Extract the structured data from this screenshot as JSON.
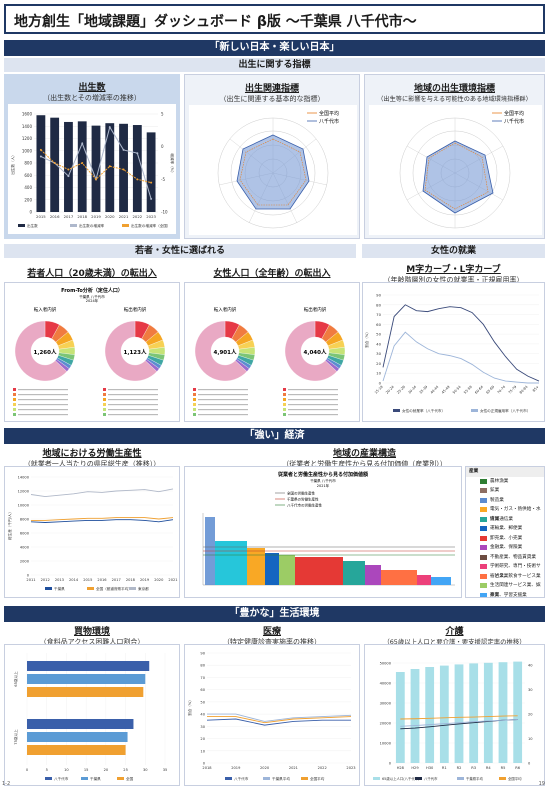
{
  "header": {
    "title": "地方創生「地域課題」ダッシュボード β版 〜千葉県 八千代市〜"
  },
  "section1": {
    "banner": "「新しい日本・楽しい日本」",
    "subbanner": "出生に関する指標",
    "births": {
      "title": "出生数",
      "subtitle": "（出生数とその増減率の推移）",
      "legend": [
        "出生数",
        "出生数の増減率",
        "出生数の増減率（全国）"
      ]
    },
    "birth_related": {
      "title": "出生関連指標",
      "subtitle": "（出生に関連する基本的な指標）",
      "legend": [
        "全国平均",
        "八千代市"
      ]
    },
    "birth_env": {
      "title": "地域の出生環境指標",
      "subtitle": "（出生等に影響を与える可能性のある地域環境指標群）",
      "legend": [
        "全国平均",
        "八千代市"
      ]
    }
  },
  "section2": {
    "banner_left": "若者・女性に選ばれる",
    "banner_right": "女性の就業",
    "youth": {
      "title": "若者人口（20歳未満）の転出入",
      "chart_title": "From-To分析（定住人口）",
      "chart_sub1": "千葉県 八千代市",
      "chart_sub2": "2024年",
      "left_label": "転入者内訳",
      "right_label": "転出者内訳",
      "left_total": "1,260人",
      "right_total": "1,123人"
    },
    "women": {
      "title": "女性人口（全年齢）の転出入",
      "left_label": "転入者内訳",
      "right_label": "転出者内訳",
      "left_total": "4,901人",
      "right_total": "4,040人"
    },
    "mcurve": {
      "title": "M字カーブ・L字カーブ",
      "subtitle": "（年齢階層別の女性の就業率・正規雇用率）",
      "legend": [
        "女性の就業率（八千代市）",
        "女性の正規雇用率（八千代市）"
      ],
      "ylabel": "割合（%）"
    }
  },
  "section3": {
    "banner": "「強い」経済",
    "productivity": {
      "title": "地域における労働生産性",
      "subtitle": "（就業者一人当たりの県民総生産（推移））",
      "legend": [
        "千葉県",
        "全国（都道府県平均）",
        "東京都"
      ],
      "ylabel": "総生産（千円/人）"
    },
    "industry": {
      "title": "地域の産業構造",
      "subtitle": "（従業者と労働生産性から見る付加価値（産業別））",
      "chart_title": "従業者と労働生産性から見る付加価値額",
      "chart_sub1": "千葉県 八千代市",
      "chart_sub2": "2021年",
      "legend": [
        "全国の労働生産性",
        "千葉県の労働生産性",
        "八千代市の労働生産性"
      ],
      "list_header": "産業",
      "list": [
        {
          "label": "農林漁業",
          "color": "#2e7d32"
        },
        {
          "label": "鉱業",
          "color": "#8d6e63"
        },
        {
          "label": "製造業",
          "color": "#5b8bd0"
        },
        {
          "label": "電気・ガス・熱供給・水道業",
          "color": "#f9a825"
        },
        {
          "label": "情報通信業",
          "color": "#26a69a"
        },
        {
          "label": "運輸業、郵便業",
          "color": "#1565c0"
        },
        {
          "label": "卸売業、小売業",
          "color": "#e53935"
        },
        {
          "label": "金融業、保険業",
          "color": "#ab47bc"
        },
        {
          "label": "不動産業、物品賃貸業",
          "color": "#6d4c41"
        },
        {
          "label": "学術研究、専門・技術サービス業",
          "color": "#ec407a"
        },
        {
          "label": "宿泊業、飲食サービス業",
          "color": "#ff7043"
        },
        {
          "label": "生活関連サービス業、娯楽業",
          "color": "#9ccc65"
        },
        {
          "label": "教育、学習支援業",
          "color": "#42a5f5"
        },
        {
          "label": "医療、福祉",
          "color": "#26c6da"
        },
        {
          "label": "複合サービス事業",
          "color": "#7e57c2"
        },
        {
          "label": "サービス業（他に分類されないもの）",
          "color": "#fbc02d"
        }
      ]
    }
  },
  "section4": {
    "banner": "「豊かな」生活環境",
    "shopping": {
      "title": "買物環境",
      "subtitle": "（食料品アクセス困難人口割合）",
      "legend": [
        "八千代市",
        "千葉県",
        "全国"
      ]
    },
    "medical": {
      "title": "医療",
      "subtitle": "（特定健康診査実施率の推移）",
      "legend": [
        "八千代市",
        "千葉県平均",
        "全国平均"
      ],
      "ylabel": "割合（%）"
    },
    "care": {
      "title": "介護",
      "subtitle": "（65歳以上人口と要介護・要支援認定率の推移）",
      "legend": [
        "65歳以上人口(八千代市)",
        "八千代市",
        "千葉県平均",
        "全国平均"
      ]
    }
  },
  "footer": {
    "left": "1-2",
    "right": "19"
  },
  "chart_data": [
    {
      "type": "bar",
      "name": "births",
      "categories": [
        "2015",
        "2016",
        "2017",
        "2018",
        "2019",
        "2020",
        "2021",
        "2022",
        "2023"
      ],
      "values": [
        1580,
        1540,
        1470,
        1480,
        1410,
        1450,
        1440,
        1420,
        1300
      ],
      "line_series": [
        {
          "name": "出生数の増減率",
          "values": [
            -1.5,
            -2.5,
            -4.5,
            0.5,
            -5.0,
            3.0,
            -0.5,
            -1.0,
            -8.0
          ]
        },
        {
          "name": "出生数の増減率（全国）",
          "values": [
            -0.5,
            -2.5,
            -3.5,
            -2.5,
            -5.0,
            -3.0,
            -3.5,
            -5.0,
            -5.5
          ]
        }
      ],
      "ylim": [
        0,
        1600
      ],
      "y2lim": [
        -10,
        5
      ],
      "ylabel": "出生数（人）",
      "y2label": "増減率（%）"
    },
    {
      "type": "line",
      "name": "productivity",
      "categories": [
        "2011",
        "2012",
        "2013",
        "2014",
        "2015",
        "2016",
        "2017",
        "2018",
        "2019",
        "2020",
        "2021"
      ],
      "series": [
        {
          "name": "千葉県",
          "values": [
            7600,
            7500,
            7600,
            7700,
            7800,
            7800,
            7900,
            7900,
            7800,
            7600,
            7900
          ]
        },
        {
          "name": "全国（都道府県平均）",
          "values": [
            7800,
            7800,
            7900,
            8000,
            8100,
            8100,
            8200,
            8200,
            8200,
            8000,
            8200
          ]
        },
        {
          "name": "東京都",
          "values": [
            11500,
            11200,
            11400,
            11600,
            11900,
            11800,
            12000,
            12100,
            12200,
            11900,
            12300
          ]
        }
      ],
      "ylim": [
        0,
        14000
      ]
    },
    {
      "type": "line",
      "name": "mcurve",
      "categories": [
        "15-19",
        "20-24",
        "25-29",
        "30-34",
        "35-39",
        "40-44",
        "45-49",
        "50-54",
        "55-59",
        "60-64",
        "65-69",
        "70-74",
        "75-79",
        "80-84",
        "85+"
      ],
      "series": [
        {
          "name": "女性の就業率（八千代市）",
          "values": [
            16,
            68,
            80,
            74,
            73,
            76,
            78,
            77,
            72,
            60,
            42,
            27,
            14,
            7,
            2
          ]
        },
        {
          "name": "女性の正規雇用率（八千代市）",
          "values": [
            2,
            38,
            52,
            42,
            35,
            30,
            28,
            25,
            19,
            11,
            5,
            2,
            1,
            0,
            0
          ]
        }
      ],
      "ylim": [
        0,
        90
      ]
    },
    {
      "type": "bar",
      "name": "shopping",
      "categories": [
        "65歳以上",
        "75歳以上"
      ],
      "series": [
        {
          "name": "八千代市",
          "values": [
            31.0,
            27.0
          ]
        },
        {
          "name": "千葉県",
          "values": [
            30.0,
            25.5
          ]
        },
        {
          "name": "全国",
          "values": [
            29.5,
            25.0
          ]
        }
      ],
      "xlim": [
        0,
        35
      ]
    },
    {
      "type": "line",
      "name": "medical",
      "categories": [
        "2018",
        "2019",
        "2020",
        "2021",
        "2022",
        "2023"
      ],
      "series": [
        {
          "name": "八千代市",
          "values": [
            35,
            36,
            31,
            34,
            35,
            35
          ]
        },
        {
          "name": "千葉県平均",
          "values": [
            40,
            40,
            34,
            37,
            38,
            39
          ]
        },
        {
          "name": "全国平均",
          "values": [
            38,
            38,
            33,
            36,
            37,
            38
          ]
        }
      ],
      "ylim": [
        0,
        90
      ]
    },
    {
      "type": "bar",
      "name": "care",
      "categories": [
        "H28",
        "H29",
        "H30",
        "R1",
        "R2",
        "R3",
        "R4",
        "R5",
        "R6"
      ],
      "values": [
        45500,
        47000,
        48000,
        48700,
        49300,
        49800,
        50100,
        50400,
        50700
      ],
      "line_series": [
        {
          "name": "八千代市",
          "values": [
            14.0,
            14.3,
            14.8,
            15.4,
            16.0,
            16.5,
            17.0,
            17.5,
            17.8
          ]
        },
        {
          "name": "千葉県平均",
          "values": [
            15.0,
            15.3,
            15.7,
            16.1,
            16.5,
            16.9,
            17.2,
            17.5,
            17.8
          ]
        },
        {
          "name": "全国平均",
          "values": [
            18.0,
            18.1,
            18.3,
            18.5,
            18.7,
            18.8,
            19.0,
            19.2,
            19.3
          ]
        }
      ],
      "ylim": [
        0,
        55000
      ],
      "y2lim": [
        0,
        45
      ]
    }
  ]
}
